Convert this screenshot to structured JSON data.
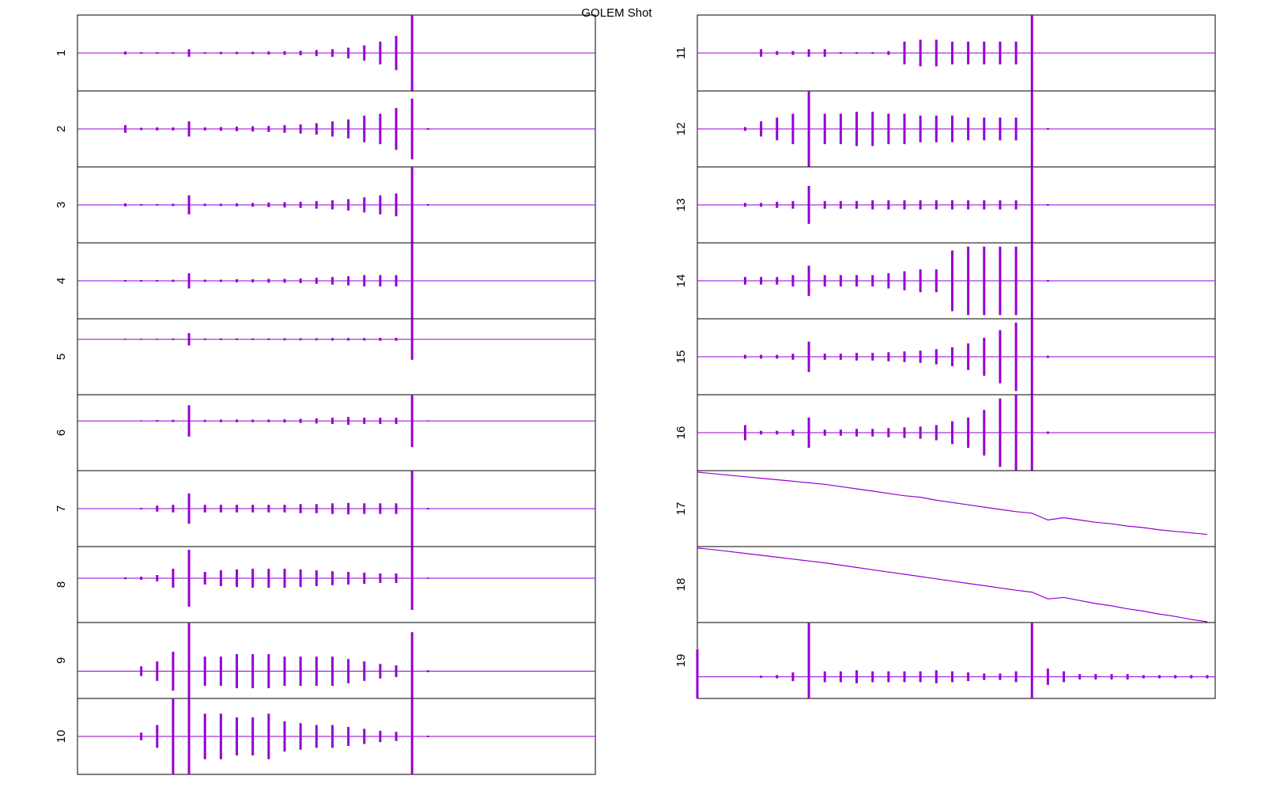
{
  "chart_data": {
    "type": "line",
    "title": "GOLEM Shot",
    "color": "#9400d3",
    "series": [
      {
        "name": "1",
        "kind": "envelope",
        "ylim": [
          -1,
          1
        ],
        "values": [
          0,
          0,
          0,
          0.04,
          0.02,
          0.02,
          0.02,
          0.1,
          0.02,
          0.03,
          0.03,
          0.03,
          0.04,
          0.05,
          0.06,
          0.08,
          0.1,
          0.14,
          0.2,
          0.3,
          0.45,
          1,
          0,
          0,
          0,
          0,
          0,
          0,
          0,
          0,
          0,
          0,
          0
        ]
      },
      {
        "name": "2",
        "kind": "envelope",
        "ylim": [
          -1,
          1
        ],
        "values": [
          0,
          0,
          0,
          0.1,
          0.03,
          0.04,
          0.04,
          0.2,
          0.04,
          0.05,
          0.06,
          0.07,
          0.08,
          0.1,
          0.12,
          0.15,
          0.2,
          0.25,
          0.35,
          0.4,
          0.55,
          0.8,
          0.02,
          0,
          0,
          0,
          0,
          0,
          0,
          0,
          0,
          0,
          0
        ]
      },
      {
        "name": "3",
        "kind": "envelope",
        "ylim": [
          -1,
          1
        ],
        "values": [
          0,
          0,
          0,
          0.04,
          0.02,
          0.02,
          0.03,
          0.25,
          0.03,
          0.03,
          0.04,
          0.05,
          0.06,
          0.07,
          0.08,
          0.1,
          0.12,
          0.15,
          0.2,
          0.25,
          0.3,
          1,
          0.02,
          0,
          0,
          0,
          0,
          0,
          0,
          0,
          0,
          0,
          0
        ]
      },
      {
        "name": "4",
        "kind": "envelope",
        "ylim": [
          -1,
          1
        ],
        "values": [
          0,
          0,
          0,
          0.02,
          0.02,
          0.02,
          0.03,
          0.2,
          0.03,
          0.03,
          0.04,
          0.04,
          0.05,
          0.05,
          0.06,
          0.08,
          0.1,
          0.12,
          0.15,
          0.15,
          0.15,
          1,
          0,
          0,
          0,
          0,
          0,
          0,
          0,
          0,
          0,
          0,
          0
        ]
      },
      {
        "name": "5",
        "kind": "envelope",
        "ylim": [
          -2.7,
          1
        ],
        "values": [
          0,
          0,
          0,
          0.03,
          0.03,
          0.03,
          0.04,
          0.3,
          0.04,
          0.04,
          0.04,
          0.04,
          0.04,
          0.05,
          0.05,
          0.05,
          0.06,
          0.06,
          0.06,
          0.07,
          0.07,
          1,
          0.02,
          0,
          0,
          0,
          0,
          0,
          0,
          0,
          0,
          0,
          0
        ]
      },
      {
        "name": "6",
        "kind": "envelope",
        "ylim": [
          -1.9,
          1
        ],
        "values": [
          0,
          0,
          0,
          0,
          0.02,
          0.03,
          0.04,
          0.6,
          0.04,
          0.05,
          0.05,
          0.05,
          0.05,
          0.06,
          0.08,
          0.1,
          0.12,
          0.15,
          0.12,
          0.12,
          0.12,
          1,
          0.02,
          0,
          0,
          0,
          0,
          0,
          0,
          0,
          0,
          0,
          0
        ]
      },
      {
        "name": "7",
        "kind": "envelope",
        "ylim": [
          -1,
          1
        ],
        "values": [
          0,
          0,
          0,
          0,
          0.02,
          0.08,
          0.1,
          0.4,
          0.1,
          0.1,
          0.1,
          0.1,
          0.1,
          0.1,
          0.12,
          0.12,
          0.14,
          0.15,
          0.14,
          0.14,
          0.14,
          1,
          0.02,
          0,
          0,
          0,
          0,
          0,
          0,
          0,
          0,
          0,
          0
        ]
      },
      {
        "name": "8",
        "kind": "envelope",
        "ylim": [
          -1.4,
          1
        ],
        "values": [
          0,
          0,
          0,
          0.03,
          0.05,
          0.1,
          0.3,
          0.9,
          0.2,
          0.25,
          0.28,
          0.3,
          0.3,
          0.3,
          0.28,
          0.25,
          0.22,
          0.2,
          0.18,
          0.15,
          0.15,
          1,
          0.02,
          0,
          0,
          0,
          0,
          0,
          0,
          0,
          0,
          0,
          0
        ]
      },
      {
        "name": "9",
        "kind": "envelope",
        "ylim": [
          -0.56,
          1
        ],
        "values": [
          0,
          0,
          0,
          0,
          0.1,
          0.2,
          0.4,
          1,
          0.3,
          0.3,
          0.35,
          0.35,
          0.35,
          0.3,
          0.3,
          0.3,
          0.3,
          0.25,
          0.2,
          0.15,
          0.12,
          0.8,
          0.02,
          0,
          0,
          0,
          0,
          0,
          0,
          0,
          0,
          0,
          0
        ]
      },
      {
        "name": "10",
        "kind": "envelope",
        "ylim": [
          -1,
          1
        ],
        "values": [
          0,
          0,
          0,
          0,
          0.1,
          0.3,
          1,
          1,
          0.6,
          0.6,
          0.5,
          0.5,
          0.6,
          0.4,
          0.35,
          0.3,
          0.3,
          0.25,
          0.2,
          0.15,
          0.12,
          1,
          0.02,
          0,
          0,
          0,
          0,
          0,
          0,
          0,
          0,
          0,
          0
        ]
      },
      {
        "name": "11",
        "kind": "envelope",
        "ylim": [
          -1,
          1
        ],
        "values": [
          0,
          0,
          0,
          0,
          0.1,
          0.05,
          0.05,
          0.1,
          0.1,
          0.02,
          0.02,
          0.02,
          0.05,
          0.3,
          0.35,
          0.35,
          0.3,
          0.3,
          0.3,
          0.3,
          0.3,
          1,
          0,
          0,
          0,
          0,
          0,
          0,
          0,
          0,
          0,
          0,
          0
        ]
      },
      {
        "name": "12",
        "kind": "envelope",
        "ylim": [
          -1,
          1
        ],
        "values": [
          0,
          0,
          0,
          0.05,
          0.2,
          0.3,
          0.4,
          1,
          0.4,
          0.4,
          0.45,
          0.45,
          0.4,
          0.4,
          0.35,
          0.35,
          0.35,
          0.3,
          0.3,
          0.3,
          0.3,
          1,
          0.02,
          0,
          0,
          0,
          0,
          0,
          0,
          0,
          0,
          0,
          0
        ]
      },
      {
        "name": "13",
        "kind": "envelope",
        "ylim": [
          -1,
          1
        ],
        "values": [
          0,
          0,
          0,
          0.05,
          0.05,
          0.08,
          0.1,
          0.5,
          0.1,
          0.1,
          0.1,
          0.12,
          0.12,
          0.12,
          0.12,
          0.12,
          0.12,
          0.12,
          0.12,
          0.12,
          0.12,
          1,
          0.02,
          0,
          0,
          0,
          0,
          0,
          0,
          0,
          0,
          0,
          0
        ]
      },
      {
        "name": "14",
        "kind": "envelope",
        "ylim": [
          -1,
          1
        ],
        "values": [
          0,
          0,
          0,
          0.1,
          0.1,
          0.1,
          0.15,
          0.4,
          0.15,
          0.15,
          0.15,
          0.15,
          0.2,
          0.25,
          0.3,
          0.3,
          0.8,
          0.9,
          0.9,
          0.9,
          0.9,
          1,
          0.02,
          0,
          0,
          0,
          0,
          0,
          0,
          0,
          0,
          0,
          0
        ]
      },
      {
        "name": "15",
        "kind": "envelope",
        "ylim": [
          -1,
          1
        ],
        "values": [
          0,
          0,
          0,
          0.05,
          0.05,
          0.05,
          0.08,
          0.4,
          0.08,
          0.08,
          0.1,
          0.1,
          0.12,
          0.14,
          0.16,
          0.2,
          0.25,
          0.35,
          0.5,
          0.7,
          0.9,
          1,
          0.03,
          0,
          0,
          0,
          0,
          0,
          0,
          0,
          0,
          0,
          0
        ]
      },
      {
        "name": "16",
        "kind": "envelope",
        "ylim": [
          -1,
          1
        ],
        "values": [
          0,
          0,
          0,
          0.2,
          0.05,
          0.05,
          0.08,
          0.4,
          0.08,
          0.08,
          0.1,
          0.1,
          0.12,
          0.14,
          0.16,
          0.2,
          0.3,
          0.4,
          0.6,
          0.9,
          1,
          1,
          0.03,
          0,
          0,
          0,
          0,
          0,
          0,
          0,
          0,
          0,
          0
        ]
      },
      {
        "name": "17",
        "kind": "line",
        "ylim": [
          -1,
          1
        ],
        "values": [
          0.96,
          0.92,
          0.88,
          0.84,
          0.8,
          0.76,
          0.72,
          0.68,
          0.64,
          0.58,
          0.52,
          0.46,
          0.4,
          0.34,
          0.3,
          0.22,
          0.16,
          0.1,
          0.04,
          -0.02,
          -0.08,
          -0.12,
          -0.3,
          -0.24,
          -0.3,
          -0.36,
          -0.4,
          -0.46,
          -0.5,
          -0.56,
          -0.6,
          -0.64,
          -0.68
        ]
      },
      {
        "name": "18",
        "kind": "line",
        "ylim": [
          -1,
          1
        ],
        "values": [
          0.96,
          0.92,
          0.87,
          0.82,
          0.77,
          0.72,
          0.67,
          0.62,
          0.57,
          0.51,
          0.45,
          0.39,
          0.33,
          0.27,
          0.21,
          0.15,
          0.09,
          0.03,
          -0.03,
          -0.09,
          -0.15,
          -0.2,
          -0.38,
          -0.34,
          -0.42,
          -0.5,
          -0.56,
          -0.64,
          -0.7,
          -0.78,
          -0.84,
          -0.92,
          -0.98
        ]
      },
      {
        "name": "19",
        "kind": "envelope",
        "ylim": [
          -0.4,
          1
        ],
        "values": [
          0.5,
          0,
          0,
          0,
          0.02,
          0.03,
          0.08,
          1,
          0.1,
          0.1,
          0.12,
          0.1,
          0.1,
          0.1,
          0.1,
          0.12,
          0.1,
          0.08,
          0.06,
          0.06,
          0.1,
          1,
          0.15,
          0.1,
          0.05,
          0.05,
          0.05,
          0.05,
          0.03,
          0.03,
          0.03,
          0.03,
          0.03
        ]
      }
    ]
  }
}
